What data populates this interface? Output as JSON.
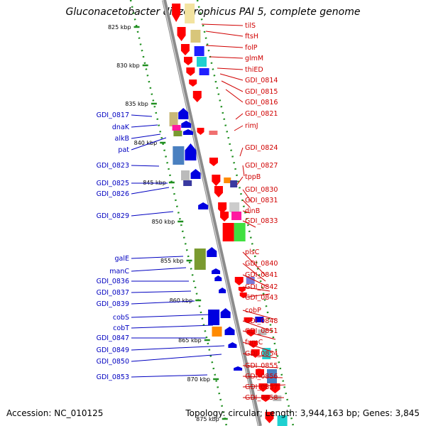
{
  "title": "Gluconacetobacter diazotrophicus PAI 5, complete genome",
  "footer": {
    "accession": "Accession: NC_010125",
    "summary": "Topology: circular; Length: 3,944,163 bp; Genes: 3,845"
  },
  "colors": {
    "backbone": "#8c8c8c",
    "frame": "#1f8f1f",
    "forward_label": "#0000c0",
    "reverse_label": "#d00000"
  },
  "tick_labels": [
    "825 kbp",
    "830 kbp",
    "835 kbp",
    "840 kbp",
    "845 kbp",
    "850 kbp",
    "855 kbp",
    "860 kbp",
    "865 kbp",
    "870 kbp",
    "875 kbp"
  ],
  "labels_left": [
    "GDI_0817",
    "dnaK",
    "alkB",
    "pat",
    "GDI_0823",
    "GDI_0825",
    "GDI_0826",
    "GDI_0829",
    "galE",
    "manC",
    "GDI_0836",
    "GDI_0837",
    "GDI_0839",
    "cobS",
    "cobT",
    "GDI_0847",
    "GDI_0849",
    "GDI_0850",
    "GDI_0853"
  ],
  "labels_right": [
    "tilS",
    "ftsH",
    "folP",
    "glmM",
    "thiED",
    "GDI_0814",
    "GDI_0815",
    "GDI_0816",
    "GDI_0821",
    "rimJ",
    "GDI_0824",
    "GDI_0827",
    "tppB",
    "GDI_0830",
    "GDI_0831",
    "dinB",
    "GDI_0833",
    "plsC",
    "GDI_0840",
    "GDI_0841",
    "GDI_0842",
    "GDI_0843",
    "cobP",
    "GDI_0848",
    "GDI_0851",
    "fumC",
    "GDI_0854",
    "GDI_0855",
    "GDI_0856",
    "GDI_0857",
    "GDI_0858"
  ]
}
